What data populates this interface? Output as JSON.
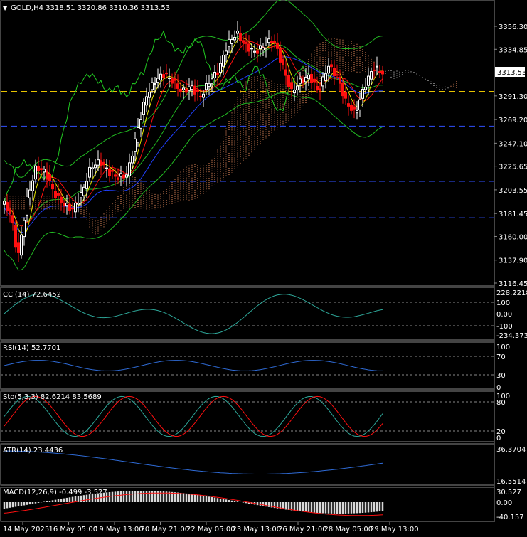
{
  "symbol_header": {
    "arrow": "▼",
    "text": "GOLD,H4  3318.51 3320.86 3310.36 3313.53"
  },
  "price_axis": {
    "ticks": [
      {
        "label": "3356.30",
        "value": 3356.3
      },
      {
        "label": "3334.85",
        "value": 3334.85
      },
      {
        "label": "3291.30",
        "value": 3291.3
      },
      {
        "label": "3269.20",
        "value": 3269.2
      },
      {
        "label": "3247.10",
        "value": 3247.1
      },
      {
        "label": "3225.65",
        "value": 3225.65
      },
      {
        "label": "3203.55",
        "value": 3203.55
      },
      {
        "label": "3181.45",
        "value": 3181.45
      },
      {
        "label": "3160.00",
        "value": 3160.0
      },
      {
        "label": "3137.90",
        "value": 3137.9
      },
      {
        "label": "3116.45",
        "value": 3116.45
      }
    ],
    "current_price_label": "3313.53",
    "current_price": 3313.53
  },
  "horizontal_levels": [
    {
      "value": 3352.0,
      "color": "#ff3030"
    },
    {
      "value": 3295.5,
      "color": "#e6c200"
    },
    {
      "value": 3263.0,
      "color": "#3050ff"
    },
    {
      "value": 3211.5,
      "color": "#3050ff"
    },
    {
      "value": 3177.5,
      "color": "#3050ff"
    }
  ],
  "time_axis": [
    "14 May 2025",
    "16 May 05:00",
    "19 May 13:00",
    "20 May 21:00",
    "22 May 05:00",
    "23 May 13:00",
    "26 May 21:00",
    "28 May 05:00",
    "29 May 13:00"
  ],
  "indicators": {
    "cci": {
      "label": "CCI(14) 72.6452",
      "ticks": [
        "228.2218",
        "100",
        "0.00",
        "-100",
        "-234.3731"
      ]
    },
    "rsi": {
      "label": "RSI(14) 52.7701",
      "ticks": [
        "100",
        "70",
        "30",
        "0"
      ]
    },
    "stoch": {
      "label": "Sto(5,3,3) 82.6214 83.5689",
      "ticks": [
        "100",
        "80",
        "20",
        "0"
      ]
    },
    "atr": {
      "label": "ATR(14) 23.4436",
      "ticks": [
        "36.3704",
        "16.5514"
      ]
    },
    "macd": {
      "label": "MACD(12,26,9) -0.499 -3.527",
      "ticks": [
        "30.527",
        "0.00",
        "-40.157"
      ]
    }
  },
  "colors": {
    "bull_candle": "#ffffff",
    "bear_candle": "#ff1010",
    "bollinger": "#22bb22",
    "senkou_a": "#ff9966",
    "senkou_b": "#dddddd",
    "tenkan": "#ff1010",
    "kijun": "#2040ff",
    "chikou": "#22cc22",
    "ma_fast": "#e6e600",
    "cci_line": "#2ea89a",
    "rsi_line": "#2f6bd6",
    "stoch_main": "#2ea89a",
    "stoch_signal": "#ff1010",
    "atr_line": "#2f6bd6",
    "macd_hist": "#d8d8d8",
    "macd_signal": "#ff1010"
  }
}
